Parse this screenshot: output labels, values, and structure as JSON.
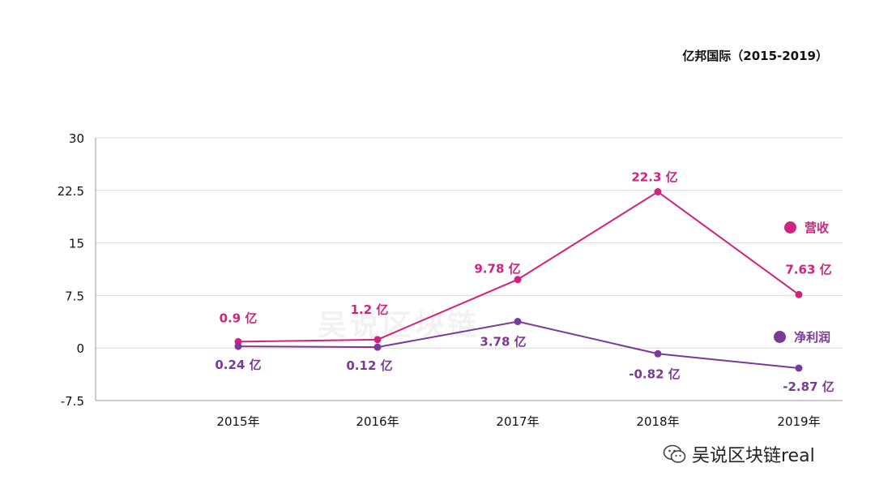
{
  "title": "亿邦国际（2015-2019）",
  "watermark": "吴说区块链",
  "source": {
    "icon": "wechat-icon",
    "text": "吴说区块链real"
  },
  "colors": {
    "revenue": "#d0237f",
    "profit": "#7b3a96",
    "grid": "#d9d9d9",
    "axis": "#999999"
  },
  "chart_data": {
    "type": "line",
    "categories": [
      "2015年",
      "2016年",
      "2017年",
      "2018年",
      "2019年"
    ],
    "ylim": [
      -7.5,
      30
    ],
    "yticks": [
      "30",
      "22.5",
      "15",
      "7.5",
      "0",
      "-7.5"
    ],
    "ytick_values": [
      30,
      22.5,
      15,
      7.5,
      0,
      -7.5
    ],
    "grid": true,
    "legend_position": "right",
    "series": [
      {
        "name": "营收",
        "values": [
          0.9,
          1.2,
          9.78,
          22.3,
          7.63
        ],
        "labels": [
          "0.9 亿",
          "1.2 亿",
          "9.78 亿",
          "22.3 亿",
          "7.63 亿"
        ]
      },
      {
        "name": "净利润",
        "values": [
          0.24,
          0.12,
          3.78,
          -0.82,
          -2.87
        ],
        "labels": [
          "0.24 亿",
          "0.12 亿",
          "3.78 亿",
          "-0.82 亿",
          "-2.87 亿"
        ]
      }
    ]
  }
}
